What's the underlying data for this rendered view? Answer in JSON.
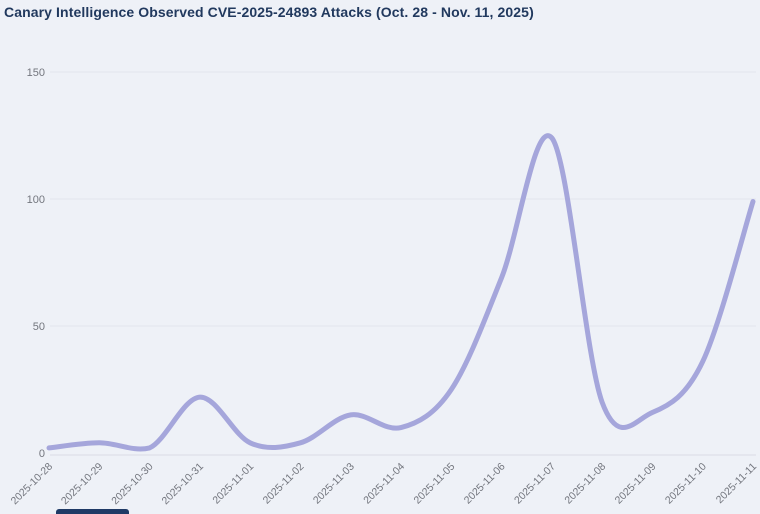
{
  "title": "Canary Intelligence Observed CVE-2025-24893 Attacks (Oct. 28 - Nov. 11, 2025)",
  "colors": {
    "background": "#eef1f7",
    "line": "#a5a6db",
    "title_text": "#21395e",
    "axis_text": "#73767e",
    "gridline": "#e3e5ed",
    "axis_line": "#d9dbe4",
    "clipped_element": "#1f3a66"
  },
  "chart_data": {
    "type": "line",
    "smooth": true,
    "title": "Canary Intelligence Observed CVE-2025-24893 Attacks (Oct. 28 - Nov. 11, 2025)",
    "x": [
      "2025-10-28",
      "2025-10-29",
      "2025-10-30",
      "2025-10-31",
      "2025-11-01",
      "2025-11-02",
      "2025-11-03",
      "2025-11-04",
      "2025-11-05",
      "2025-11-06",
      "2025-11-07",
      "2025-11-08",
      "2025-11-09",
      "2025-11-10",
      "2025-11-11"
    ],
    "values": [
      2,
      4,
      2,
      22,
      4,
      4,
      15,
      10,
      25,
      69,
      124,
      20,
      16,
      36,
      99
    ],
    "xlabel": "",
    "ylabel": "",
    "ylim": [
      0,
      150
    ],
    "yticks": [
      0,
      50,
      100,
      150
    ],
    "grid": true,
    "legend_position": "none"
  }
}
